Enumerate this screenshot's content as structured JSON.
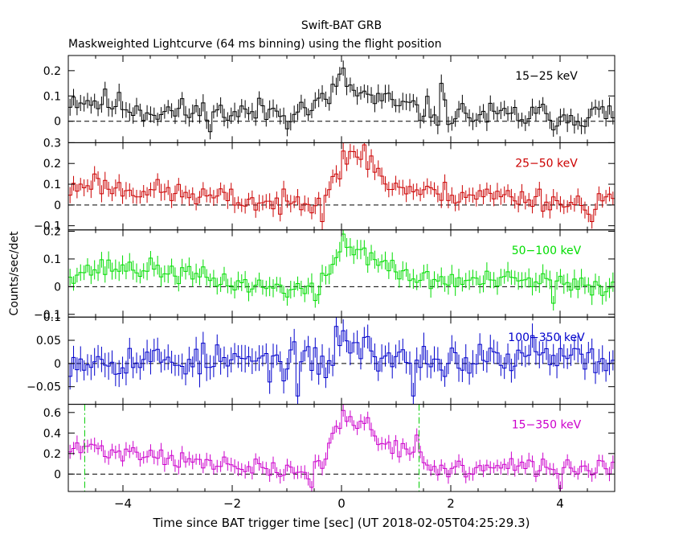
{
  "title": "Swift-BAT GRB",
  "subtitle": "Maskweighted Lightcurve (64 ms binning) using the flight position",
  "xlabel": "Time since BAT trigger time [sec] (UT 2018-02-05T04:25:29.3)",
  "ylabel": "Counts/sec/det",
  "colors": {
    "axis": "#000000",
    "baseline": "#000000",
    "marker": "#00cc00"
  },
  "chart_data": {
    "type": "line",
    "subtype": "step-lightcurve-with-errorbars",
    "binning_sec": 0.064,
    "xlim": [
      -5,
      5
    ],
    "x_ticks": [
      -4,
      -2,
      0,
      2,
      4
    ],
    "x_tick_labels": [
      "−4",
      "−2",
      "0",
      "2",
      "4"
    ],
    "marker_times": [
      -4.7,
      1.42
    ],
    "panels": [
      {
        "name": "15-25 keV",
        "label": "15−25 keV",
        "color": "#000000",
        "ylim": [
          -0.085,
          0.26
        ],
        "y_ticks": [
          0,
          0.1,
          0.2
        ],
        "y_tick_labels": [
          "0",
          "0.1",
          "0.2"
        ],
        "error_typ": 0.03,
        "anchors": [
          [
            -5,
            0.09
          ],
          [
            -4.2,
            0.07
          ],
          [
            -3.5,
            0.04
          ],
          [
            -2,
            0.03
          ],
          [
            -0.6,
            0.05
          ],
          [
            -0.3,
            0.08
          ],
          [
            0,
            0.15
          ],
          [
            0.3,
            0.11
          ],
          [
            0.7,
            0.08
          ],
          [
            1.1,
            0.06
          ],
          [
            1.5,
            0.04
          ],
          [
            2.5,
            0.02
          ],
          [
            4,
            0.02
          ],
          [
            5,
            0.03
          ]
        ],
        "noise": 0.045,
        "seed": 11,
        "spikes": [
          [
            0,
            0.21
          ],
          [
            -1.0,
            -0.03
          ],
          [
            1.8,
            0.15
          ]
        ]
      },
      {
        "name": "25-50 keV",
        "label": "25−50 keV",
        "color": "#cc0000",
        "ylim": [
          -0.12,
          0.3
        ],
        "y_ticks": [
          -0.1,
          0,
          0.1,
          0.2,
          0.3
        ],
        "y_tick_labels": [
          "−0.1",
          "0",
          "0.1",
          "0.2",
          "0.3"
        ],
        "error_typ": 0.035,
        "anchors": [
          [
            -5,
            0.06
          ],
          [
            -4.6,
            0.12
          ],
          [
            -4.2,
            0.08
          ],
          [
            -3.5,
            0.07
          ],
          [
            -2.5,
            0.04
          ],
          [
            -1,
            0.0
          ],
          [
            -0.3,
            0.05
          ],
          [
            -0.1,
            0.16
          ],
          [
            0.1,
            0.22
          ],
          [
            0.4,
            0.21
          ],
          [
            0.6,
            0.2
          ],
          [
            0.8,
            0.1
          ],
          [
            1.2,
            0.08
          ],
          [
            1.5,
            0.06
          ],
          [
            2.5,
            0.05
          ],
          [
            3.7,
            0.03
          ],
          [
            4.2,
            0.0
          ],
          [
            5,
            0.03
          ]
        ],
        "noise": 0.045,
        "seed": 23,
        "spikes": [
          [
            0,
            0.26
          ],
          [
            0.4,
            0.29
          ],
          [
            -0.35,
            -0.08
          ],
          [
            4.6,
            -0.08
          ]
        ]
      },
      {
        "name": "50-100 keV",
        "label": "50−100 keV",
        "color": "#00dd00",
        "ylim": [
          -0.11,
          0.205
        ],
        "y_ticks": [
          -0.1,
          0,
          0.1,
          0.2
        ],
        "y_tick_labels": [
          "−0.1",
          "0",
          "0.1",
          "0.2"
        ],
        "error_typ": 0.03,
        "anchors": [
          [
            -5,
            0.05
          ],
          [
            -4.2,
            0.07
          ],
          [
            -3.3,
            0.06
          ],
          [
            -2.5,
            0.03
          ],
          [
            -1.5,
            0.0
          ],
          [
            -0.7,
            -0.01
          ],
          [
            -0.4,
            -0.01
          ],
          [
            -0.2,
            0.07
          ],
          [
            0,
            0.15
          ],
          [
            0.3,
            0.13
          ],
          [
            0.6,
            0.11
          ],
          [
            0.9,
            0.06
          ],
          [
            1.3,
            0.03
          ],
          [
            2,
            0.02
          ],
          [
            3,
            0.02
          ],
          [
            3.8,
            0.02
          ],
          [
            4.2,
            0.0
          ],
          [
            5,
            0.0
          ]
        ],
        "noise": 0.03,
        "seed": 37,
        "spikes": [
          [
            0.0,
            0.19
          ],
          [
            -0.45,
            -0.05
          ],
          [
            3.9,
            -0.06
          ]
        ]
      },
      {
        "name": "100-350 keV",
        "label": "100−350 keV",
        "color": "#0000cc",
        "ylim": [
          -0.088,
          0.1
        ],
        "y_ticks": [
          -0.05,
          0,
          0.05,
          0.1
        ],
        "y_tick_labels": [
          "−0.05",
          "0",
          "0.05",
          "0.1"
        ],
        "error_typ": 0.025,
        "anchors": [
          [
            -5,
            0.01
          ],
          [
            -2,
            0.005
          ],
          [
            -0.2,
            0.0
          ],
          [
            0,
            0.05
          ],
          [
            0.3,
            0.04
          ],
          [
            0.6,
            0.02
          ],
          [
            1,
            0.01
          ],
          [
            2.5,
            0.005
          ],
          [
            5,
            0.01
          ]
        ],
        "noise": 0.03,
        "seed": 53,
        "spikes": [
          [
            -0.1,
            0.08
          ],
          [
            -0.8,
            -0.07
          ],
          [
            1.3,
            -0.07
          ],
          [
            3.5,
            0.06
          ]
        ]
      },
      {
        "name": "15-350 keV",
        "label": "15−350 keV",
        "color": "#cc00cc",
        "ylim": [
          -0.17,
          0.68
        ],
        "y_ticks": [
          0,
          0.2,
          0.4,
          0.6
        ],
        "y_tick_labels": [
          "0",
          "0.2",
          "0.4",
          "0.6"
        ],
        "error_typ": 0.06,
        "anchors": [
          [
            -5,
            0.22
          ],
          [
            -4.6,
            0.27
          ],
          [
            -4.3,
            0.22
          ],
          [
            -3.5,
            0.2
          ],
          [
            -2.5,
            0.1
          ],
          [
            -1.5,
            0.05
          ],
          [
            -0.6,
            0.0
          ],
          [
            -0.3,
            0.15
          ],
          [
            -0.1,
            0.45
          ],
          [
            0.1,
            0.52
          ],
          [
            0.4,
            0.48
          ],
          [
            0.7,
            0.35
          ],
          [
            1.0,
            0.27
          ],
          [
            1.4,
            0.22
          ],
          [
            1.5,
            0.05
          ],
          [
            2.5,
            0.05
          ],
          [
            3.5,
            0.07
          ],
          [
            4.2,
            0.05
          ],
          [
            5,
            0.08
          ]
        ],
        "noise": 0.07,
        "seed": 71,
        "spikes": [
          [
            0.0,
            0.62
          ],
          [
            0.45,
            0.55
          ],
          [
            1.4,
            0.38
          ],
          [
            -0.55,
            -0.13
          ],
          [
            4.0,
            -0.14
          ]
        ]
      }
    ]
  }
}
